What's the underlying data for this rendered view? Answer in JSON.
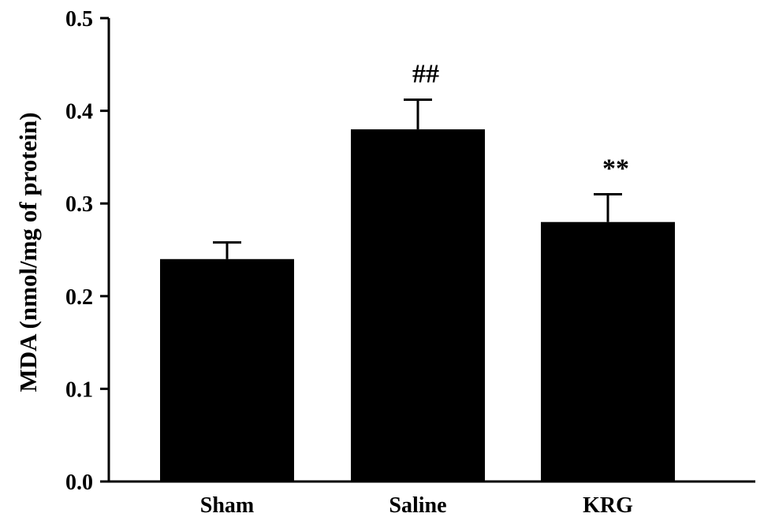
{
  "chart_data": {
    "type": "bar",
    "title": "",
    "xlabel": "",
    "ylabel": "MDA (nmol/mg of protein)",
    "ylim": [
      0,
      0.5
    ],
    "yticks": [
      "0.0",
      "0.1",
      "0.2",
      "0.3",
      "0.4",
      "0.5"
    ],
    "categories": [
      "Sham",
      "Saline",
      "KRG"
    ],
    "series": [
      {
        "values": [
          0.24,
          0.38,
          0.28
        ],
        "errors": [
          0.018,
          0.032,
          0.03
        ],
        "color": "#000000"
      }
    ],
    "annotations": [
      "",
      "##",
      "**"
    ],
    "grid": false,
    "legend": "none"
  }
}
